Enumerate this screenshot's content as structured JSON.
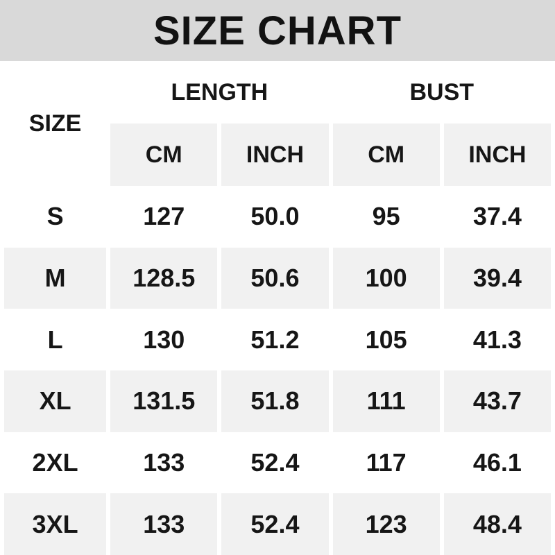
{
  "title": "SIZE CHART",
  "table": {
    "size_header": "SIZE",
    "groups": [
      {
        "label": "LENGTH"
      },
      {
        "label": "BUST"
      }
    ],
    "sub_headers": [
      "CM",
      "INCH",
      "CM",
      "INCH"
    ],
    "rows": [
      {
        "size": "S",
        "values": [
          "127",
          "50.0",
          "95",
          "37.4"
        ]
      },
      {
        "size": "M",
        "values": [
          "128.5",
          "50.6",
          "100",
          "39.4"
        ]
      },
      {
        "size": "L",
        "values": [
          "130",
          "51.2",
          "105",
          "41.3"
        ]
      },
      {
        "size": "XL",
        "values": [
          "131.5",
          "51.8",
          "111",
          "43.7"
        ]
      },
      {
        "size": "2XL",
        "values": [
          "133",
          "52.4",
          "117",
          "46.1"
        ]
      },
      {
        "size": "3XL",
        "values": [
          "133",
          "52.4",
          "123",
          "48.4"
        ]
      }
    ]
  },
  "colors": {
    "title_bar_bg": "#d9d9d9",
    "band_bg": "#f1f1f1",
    "row_alt_bg": "#f1f1f1",
    "text": "#161616",
    "page_bg": "#ffffff"
  },
  "chart_data": {
    "type": "table",
    "title": "SIZE CHART",
    "column_groups": [
      "LENGTH",
      "BUST"
    ],
    "columns": [
      "SIZE",
      "LENGTH CM",
      "LENGTH INCH",
      "BUST CM",
      "BUST INCH"
    ],
    "rows": [
      [
        "S",
        127,
        50.0,
        95,
        37.4
      ],
      [
        "M",
        128.5,
        50.6,
        100,
        39.4
      ],
      [
        "L",
        130,
        51.2,
        105,
        41.3
      ],
      [
        "XL",
        131.5,
        51.8,
        111,
        43.7
      ],
      [
        "2XL",
        133,
        52.4,
        117,
        46.1
      ],
      [
        "3XL",
        133,
        52.4,
        123,
        48.4
      ]
    ]
  }
}
